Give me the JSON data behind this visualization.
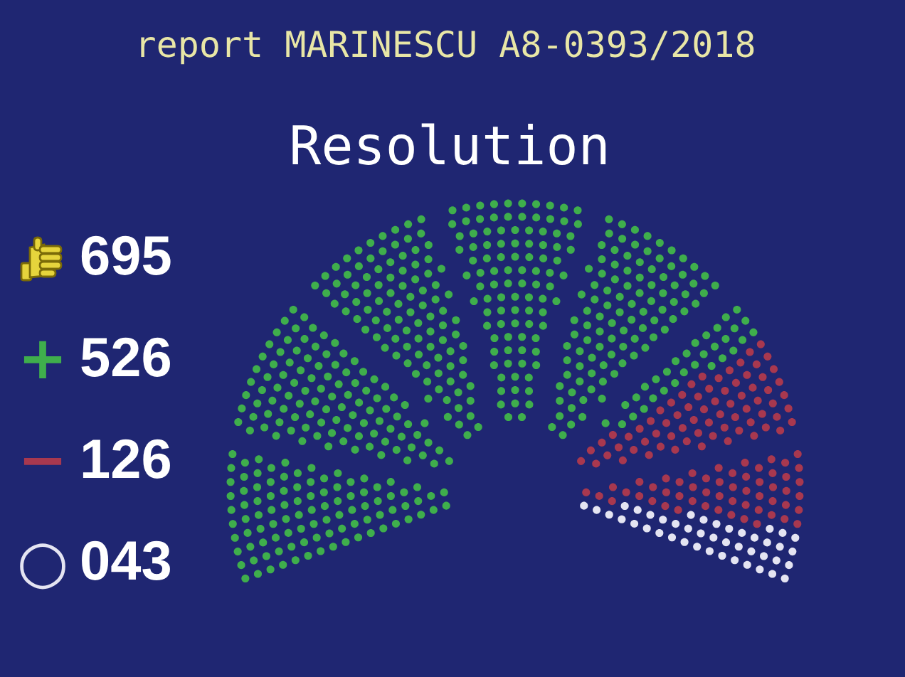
{
  "chart_data": {
    "type": "other",
    "title": "report MARINESCU A8-0393/2018",
    "subtitle": "Resolution",
    "categories": [
      null,
      "+",
      "−",
      "○"
    ],
    "values": [
      695,
      526,
      126,
      43
    ],
    "value_labels": [
      "695",
      "526",
      "126",
      "043"
    ],
    "colors": [
      "#e6d43c",
      "#3fae4c",
      "#a8384f",
      "#e4e4f2"
    ]
  }
}
